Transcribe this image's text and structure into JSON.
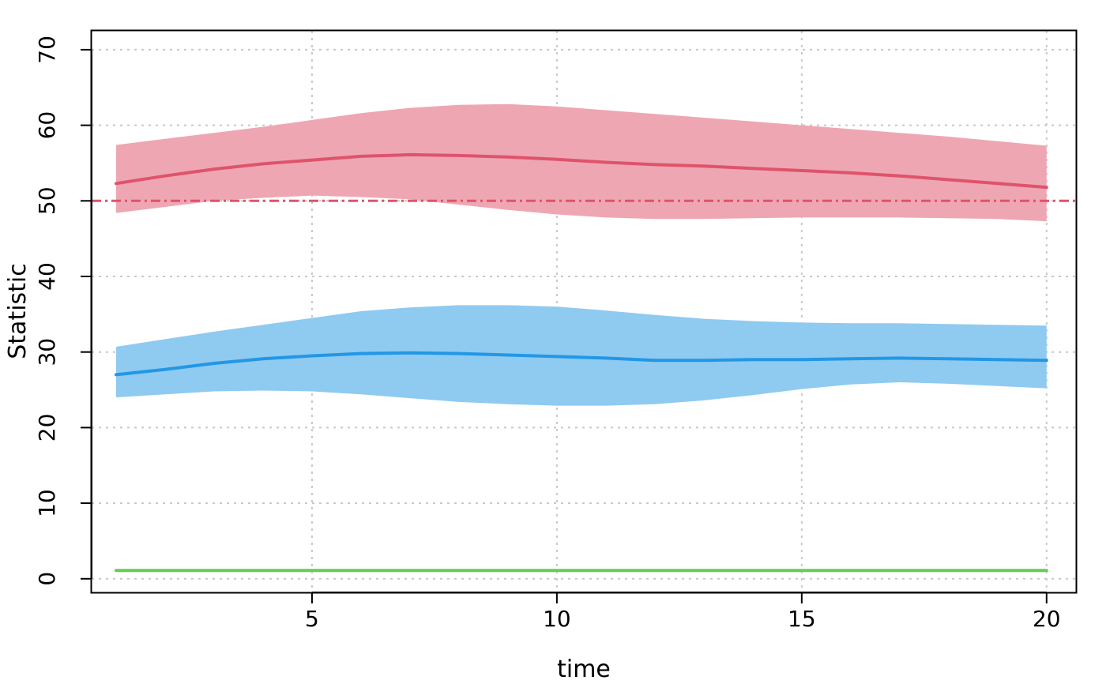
{
  "chart_data": {
    "type": "line",
    "title": "",
    "xlabel": "time",
    "ylabel": "Statistic",
    "xlim": [
      0.5,
      20.6
    ],
    "ylim": [
      -1.8,
      72.5
    ],
    "xticks": [
      5,
      10,
      15,
      20
    ],
    "yticks": [
      0,
      10,
      20,
      30,
      40,
      50,
      60,
      70
    ],
    "grid": true,
    "x": [
      1,
      2,
      3,
      4,
      5,
      6,
      7,
      8,
      9,
      10,
      11,
      12,
      13,
      14,
      15,
      16,
      17,
      18,
      19,
      20
    ],
    "series": [
      {
        "color": "#df536b",
        "band_color": "#eea7b2",
        "mean": [
          52.3,
          53.3,
          54.2,
          54.9,
          55.4,
          55.9,
          56.1,
          56.0,
          55.8,
          55.5,
          55.1,
          54.8,
          54.6,
          54.3,
          54.0,
          53.7,
          53.3,
          52.8,
          52.3,
          51.8
        ],
        "lower": [
          48.4,
          49.2,
          50.0,
          50.4,
          50.7,
          50.5,
          50.2,
          49.5,
          48.8,
          48.2,
          47.8,
          47.6,
          47.6,
          47.7,
          47.8,
          47.8,
          47.8,
          47.7,
          47.6,
          47.3
        ],
        "upper": [
          57.4,
          58.2,
          59.0,
          59.8,
          60.7,
          61.6,
          62.3,
          62.7,
          62.8,
          62.5,
          62.0,
          61.5,
          61.0,
          60.5,
          60.0,
          59.5,
          59.0,
          58.5,
          57.9,
          57.3
        ],
        "reference": 50
      },
      {
        "color": "#2297e6",
        "band_color": "#8fcaf0",
        "mean": [
          27.0,
          27.7,
          28.5,
          29.1,
          29.5,
          29.8,
          29.9,
          29.8,
          29.6,
          29.4,
          29.2,
          28.9,
          28.9,
          29.0,
          29.0,
          29.1,
          29.2,
          29.1,
          29.0,
          28.9
        ],
        "lower": [
          24.0,
          24.4,
          24.8,
          24.9,
          24.8,
          24.4,
          23.9,
          23.4,
          23.1,
          22.9,
          22.9,
          23.1,
          23.6,
          24.3,
          25.1,
          25.7,
          26.0,
          25.8,
          25.5,
          25.2
        ],
        "upper": [
          30.7,
          31.7,
          32.7,
          33.6,
          34.5,
          35.4,
          35.9,
          36.2,
          36.2,
          36.0,
          35.5,
          34.9,
          34.4,
          34.1,
          33.9,
          33.8,
          33.8,
          33.7,
          33.6,
          33.5
        ]
      },
      {
        "color": "#61d04f",
        "mean": [
          1.1,
          1.1,
          1.1,
          1.1,
          1.1,
          1.1,
          1.1,
          1.1,
          1.1,
          1.1,
          1.1,
          1.1,
          1.1,
          1.1,
          1.1,
          1.1,
          1.1,
          1.1,
          1.1,
          1.1
        ]
      }
    ]
  }
}
